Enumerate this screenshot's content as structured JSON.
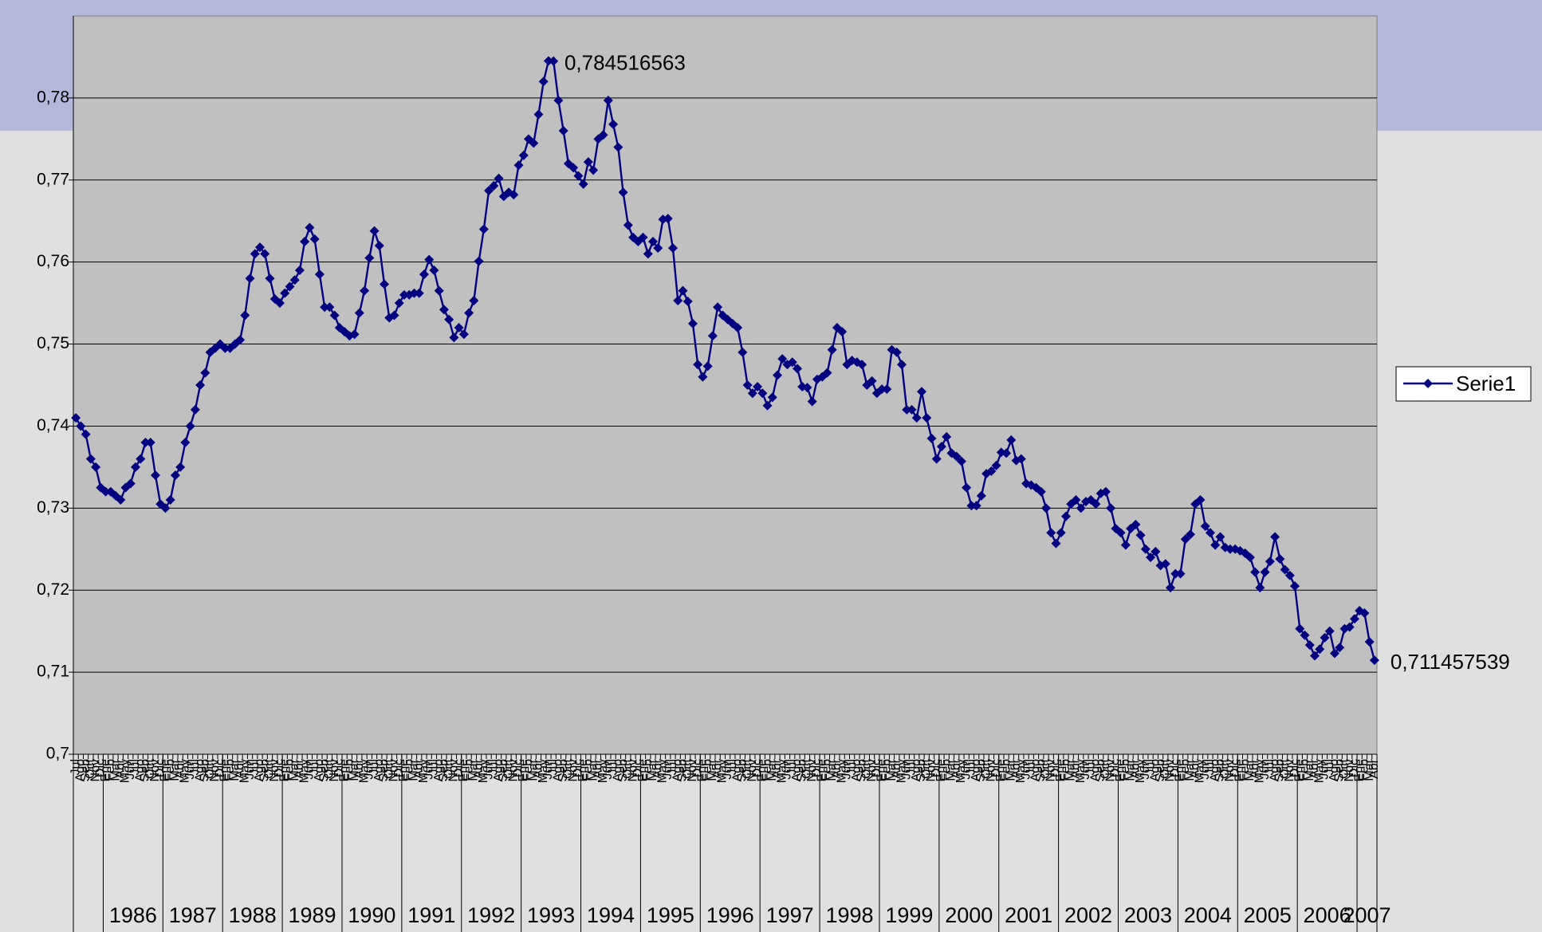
{
  "chart_data": {
    "type": "line",
    "categories": [
      "Jul",
      "Ago",
      "Sep",
      "Oct",
      "Nov",
      "Dic",
      "Ene",
      "Feb",
      "Mar",
      "Abr",
      "May",
      "Jun",
      "Jul",
      "Ago",
      "Sep",
      "Oct",
      "Nov",
      "Dic",
      "Ene",
      "Feb",
      "Mar",
      "Abr",
      "May",
      "Jun",
      "Jul",
      "Ago",
      "Sep",
      "Oct",
      "Nov",
      "Dic",
      "Ene",
      "Feb",
      "Mar",
      "Abr",
      "May",
      "Jun",
      "Jul",
      "Ago",
      "Sep",
      "Oct",
      "Nov",
      "Dic",
      "Ene",
      "Feb",
      "Mar",
      "Abr",
      "May",
      "Jun",
      "Jul",
      "Ago",
      "Sep",
      "Oct",
      "Nov",
      "Dic",
      "Ene",
      "Feb",
      "Mar",
      "Abr",
      "May",
      "Jun",
      "Jul",
      "Ago",
      "Sep",
      "Oct",
      "Nov",
      "Dic",
      "Ene",
      "Feb",
      "Mar",
      "Abr",
      "May",
      "Jun",
      "Jul",
      "Ago",
      "Sep",
      "Oct",
      "Nov",
      "Dic",
      "Ene",
      "Feb",
      "Mar",
      "Abr",
      "May",
      "Jun",
      "Jul",
      "Ago",
      "Sep",
      "Oct",
      "Nov",
      "Dic",
      "Ene",
      "Feb",
      "Mar",
      "Abr",
      "May",
      "Jun",
      "Jul",
      "Ago",
      "Sep",
      "Oct",
      "Nov",
      "Dic",
      "Ene",
      "Feb",
      "Mar",
      "Abr",
      "May",
      "Jun",
      "Jul",
      "Ago",
      "Sep",
      "Oct",
      "Nov",
      "Dic",
      "Ene",
      "Feb",
      "Mar",
      "Abr",
      "May",
      "Jun",
      "Jul",
      "Ago",
      "Sep",
      "Oct",
      "Nov",
      "Dic",
      "Ene",
      "Feb",
      "Mar",
      "Abr",
      "May",
      "Jun",
      "Jul",
      "Ago",
      "Sep",
      "Oct",
      "Nov",
      "Dic",
      "Ene",
      "Feb",
      "Mar",
      "Abr",
      "May",
      "Jun",
      "Jul",
      "Ago",
      "Sep",
      "Oct",
      "Nov",
      "Dic",
      "Ene",
      "Feb",
      "Mar",
      "Abr",
      "May",
      "Jun",
      "Jul",
      "Ago",
      "Sep",
      "Oct",
      "Nov",
      "Dic",
      "Ene",
      "Feb",
      "Mar",
      "Abr",
      "May",
      "Jun",
      "Jul",
      "Ago",
      "Sep",
      "Oct",
      "Nov",
      "Dic",
      "Ene",
      "Feb",
      "Mar",
      "Abr",
      "May",
      "Jun",
      "Jul",
      "Ago",
      "Sep",
      "Oct",
      "Nov",
      "Dic",
      "Ene",
      "Feb",
      "Mar",
      "Abr",
      "May",
      "Jun",
      "Jul",
      "Ago",
      "Sep",
      "Oct",
      "Nov",
      "Dic",
      "Ene",
      "Feb",
      "Mar",
      "Abr",
      "May",
      "Jun",
      "Jul",
      "Ago",
      "Sep",
      "Oct",
      "Nov",
      "Dic",
      "Ene",
      "Feb",
      "Mar",
      "Abr",
      "May",
      "Jun",
      "Jul",
      "Ago",
      "Sep",
      "Oct",
      "Nov",
      "Dic",
      "Ene",
      "Feb",
      "Mar",
      "Abr",
      "May",
      "Jun",
      "Jul",
      "Ago",
      "Sep",
      "Oct",
      "Nov",
      "Dic",
      "Ene",
      "Feb",
      "Mar",
      "Abr",
      "May",
      "Jun",
      "Jul",
      "Ago",
      "Sep",
      "Oct",
      "Nov",
      "Dic",
      "Ene",
      "Feb",
      "Mar",
      "Abr",
      "May",
      "Jun",
      "Jul",
      "Ago",
      "Sep",
      "Oct",
      "Nov",
      "Dic",
      "Ene",
      "Feb",
      "Mar",
      "Abr"
    ],
    "year_labels": [
      null,
      "1986",
      "1987",
      "1988",
      "1989",
      "1990",
      "1991",
      "1992",
      "1993",
      "1994",
      "1995",
      "1996",
      "1997",
      "1998",
      "1999",
      "2000",
      "2001",
      "2002",
      "2003",
      "2004",
      "2005",
      "2006",
      "2007"
    ],
    "series": [
      {
        "name": "Serie1",
        "color": "#000080",
        "values": [
          0.741,
          0.74,
          0.739,
          0.736,
          0.735,
          0.7325,
          0.732,
          0.732,
          0.7315,
          0.731,
          0.7325,
          0.733,
          0.735,
          0.736,
          0.738,
          0.738,
          0.734,
          0.7305,
          0.73,
          0.731,
          0.734,
          0.735,
          0.738,
          0.74,
          0.742,
          0.745,
          0.7465,
          0.749,
          0.7495,
          0.75,
          0.7495,
          0.7495,
          0.75,
          0.7505,
          0.7535,
          0.758,
          0.761,
          0.7618,
          0.761,
          0.758,
          0.7555,
          0.755,
          0.7562,
          0.757,
          0.7578,
          0.759,
          0.7625,
          0.7642,
          0.7628,
          0.7585,
          0.7545,
          0.7545,
          0.7535,
          0.752,
          0.7515,
          0.751,
          0.7512,
          0.7538,
          0.7565,
          0.7605,
          0.7638,
          0.762,
          0.7573,
          0.7532,
          0.7535,
          0.755,
          0.756,
          0.756,
          0.7562,
          0.7562,
          0.7585,
          0.7603,
          0.759,
          0.7565,
          0.7542,
          0.753,
          0.7508,
          0.752,
          0.7512,
          0.7538,
          0.7553,
          0.7601,
          0.764,
          0.7687,
          0.7693,
          0.7702,
          0.768,
          0.7685,
          0.7682,
          0.7718,
          0.773,
          0.775,
          0.7745,
          0.778,
          0.782,
          0.784516563,
          0.7845,
          0.7797,
          0.776,
          0.772,
          0.7715,
          0.7705,
          0.7695,
          0.7722,
          0.7712,
          0.775,
          0.7755,
          0.7797,
          0.7768,
          0.774,
          0.7685,
          0.7645,
          0.763,
          0.7625,
          0.763,
          0.761,
          0.7625,
          0.7617,
          0.7652,
          0.7653,
          0.7617,
          0.7553,
          0.7565,
          0.7552,
          0.7525,
          0.7475,
          0.746,
          0.7473,
          0.751,
          0.7545,
          0.7535,
          0.753,
          0.7525,
          0.752,
          0.749,
          0.745,
          0.744,
          0.7448,
          0.744,
          0.7425,
          0.7435,
          0.7462,
          0.7482,
          0.7475,
          0.7478,
          0.747,
          0.7448,
          0.7447,
          0.743,
          0.7457,
          0.746,
          0.7465,
          0.7493,
          0.752,
          0.7515,
          0.7475,
          0.748,
          0.7478,
          0.7475,
          0.745,
          0.7455,
          0.744,
          0.7445,
          0.7445,
          0.7493,
          0.749,
          0.7475,
          0.742,
          0.742,
          0.741,
          0.7442,
          0.741,
          0.7385,
          0.736,
          0.7375,
          0.7387,
          0.7367,
          0.7363,
          0.7357,
          0.7325,
          0.7303,
          0.7303,
          0.7315,
          0.7342,
          0.7345,
          0.7352,
          0.7368,
          0.7367,
          0.7383,
          0.7358,
          0.736,
          0.733,
          0.7328,
          0.7325,
          0.732,
          0.73,
          0.727,
          0.7257,
          0.727,
          0.729,
          0.7305,
          0.731,
          0.73,
          0.7308,
          0.731,
          0.7305,
          0.7318,
          0.732,
          0.73,
          0.7275,
          0.727,
          0.7255,
          0.7275,
          0.728,
          0.7267,
          0.725,
          0.724,
          0.7247,
          0.723,
          0.7232,
          0.7203,
          0.722,
          0.722,
          0.7262,
          0.7268,
          0.7305,
          0.731,
          0.7278,
          0.727,
          0.7255,
          0.7265,
          0.7252,
          0.725,
          0.725,
          0.7248,
          0.7245,
          0.724,
          0.7222,
          0.7203,
          0.7222,
          0.7235,
          0.7265,
          0.7238,
          0.7225,
          0.7218,
          0.7205,
          0.7153,
          0.7145,
          0.7133,
          0.712,
          0.7128,
          0.7142,
          0.715,
          0.7123,
          0.713,
          0.7153,
          0.7155,
          0.7165,
          0.7175,
          0.7172,
          0.7137,
          0.711457539
        ],
        "value_labels": [
          null,
          null,
          null,
          null,
          null,
          null,
          null,
          null,
          null,
          null,
          null,
          null,
          null,
          null,
          null,
          null,
          null,
          null,
          null,
          null,
          null,
          null,
          null,
          null,
          null,
          null,
          null,
          null,
          null,
          null,
          null,
          null,
          null,
          null,
          null,
          null,
          null,
          null,
          null,
          null,
          null,
          null,
          null,
          null,
          null,
          null,
          null,
          null,
          null,
          null,
          null,
          null,
          null,
          null,
          null,
          null,
          null,
          null,
          null,
          null,
          null,
          null,
          null,
          null,
          null,
          null,
          null,
          null,
          null,
          null,
          null,
          null,
          null,
          null,
          null,
          null,
          null,
          null,
          null,
          null,
          null,
          null,
          null,
          null,
          null,
          null,
          null,
          null,
          null,
          null,
          null,
          null,
          null,
          null,
          null,
          "0,784516563",
          null,
          null,
          null,
          null,
          null,
          null,
          null,
          null,
          null,
          null,
          null,
          null,
          null,
          null,
          null,
          null,
          null,
          null,
          null,
          null,
          null,
          null,
          null,
          null,
          null,
          null,
          null,
          null,
          null,
          null,
          null,
          null,
          null,
          null,
          null,
          null,
          null,
          null,
          null,
          null,
          null,
          null,
          null,
          null,
          null,
          null,
          null,
          null,
          null,
          null,
          null,
          null,
          null,
          null,
          null,
          null,
          null,
          null,
          null,
          null,
          null,
          null,
          null,
          null,
          null,
          null,
          null,
          null,
          null,
          null,
          null,
          null,
          null,
          null,
          null,
          null,
          null,
          null,
          null,
          null,
          null,
          null,
          null,
          null,
          null,
          null,
          null,
          null,
          null,
          null,
          null,
          null,
          null,
          null,
          null,
          null,
          null,
          null,
          null,
          null,
          null,
          null,
          null,
          null,
          null,
          null,
          null,
          null,
          null,
          null,
          null,
          null,
          null,
          null,
          null,
          null,
          null,
          null,
          null,
          null,
          null,
          null,
          null,
          null,
          null,
          null,
          null,
          null,
          null,
          null,
          null,
          null,
          null,
          null,
          null,
          null,
          null,
          null,
          null,
          null,
          null,
          null,
          null,
          null,
          null,
          null,
          null,
          null,
          null,
          null,
          null,
          null,
          null,
          null,
          null,
          null,
          null,
          null,
          null,
          null,
          null,
          null,
          null,
          null,
          null,
          "0,711457539"
        ]
      }
    ],
    "ylim": [
      0.7,
      0.79
    ],
    "yticks": [
      {
        "value": 0.7,
        "label": "0,7"
      },
      {
        "value": 0.71,
        "label": "0,71"
      },
      {
        "value": 0.72,
        "label": "0,72"
      },
      {
        "value": 0.73,
        "label": "0,73"
      },
      {
        "value": 0.74,
        "label": "0,74"
      },
      {
        "value": 0.75,
        "label": "0,75"
      },
      {
        "value": 0.76,
        "label": "0,76"
      },
      {
        "value": 0.77,
        "label": "0,77"
      },
      {
        "value": 0.78,
        "label": "0,78"
      },
      {
        "value": {
          "v": 0
        },
        "label": null
      }
    ],
    "grid": true,
    "legend": "right"
  }
}
